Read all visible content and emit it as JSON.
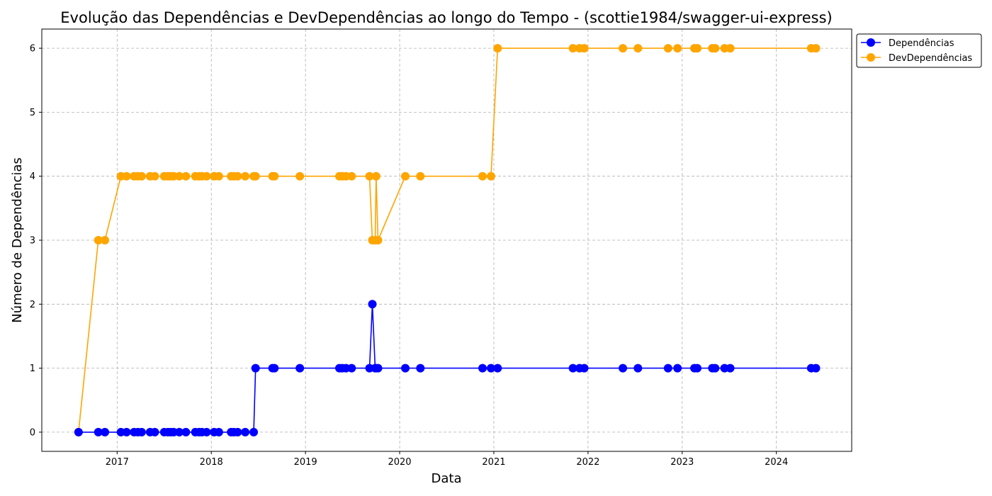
{
  "chart_data": {
    "type": "line",
    "title": "Evolução das Dependências e DevDependências ao longo do Tempo - (scottie1984/swagger-ui-express)",
    "xlabel": "Data",
    "ylabel": "Número de Dependências",
    "xlim": [
      2016.2,
      2024.8
    ],
    "ylim": [
      -0.3,
      6.3
    ],
    "x_ticks": [
      2017,
      2018,
      2019,
      2020,
      2021,
      2022,
      2023,
      2024
    ],
    "x_tick_labels": [
      "2017",
      "2018",
      "2019",
      "2020",
      "2021",
      "2022",
      "2023",
      "2024"
    ],
    "y_ticks": [
      0,
      1,
      2,
      3,
      4,
      5,
      6
    ],
    "y_tick_labels": [
      "0",
      "1",
      "2",
      "3",
      "4",
      "5",
      "6"
    ],
    "grid": true,
    "legend_position": "outside-top-right",
    "x": [
      2016.59,
      2016.8,
      2016.87,
      2017.04,
      2017.1,
      2017.18,
      2017.22,
      2017.26,
      2017.35,
      2017.4,
      2017.5,
      2017.54,
      2017.57,
      2017.6,
      2017.66,
      2017.73,
      2017.83,
      2017.87,
      2017.9,
      2017.95,
      2018.03,
      2018.08,
      2018.21,
      2018.24,
      2018.28,
      2018.36,
      2018.45,
      2018.47,
      2018.65,
      2018.67,
      2018.94,
      2019.36,
      2019.39,
      2019.43,
      2019.49,
      2019.68,
      2019.71,
      2019.74,
      2019.75,
      2019.77,
      2020.06,
      2020.22,
      2020.88,
      2020.97,
      2021.04,
      2021.84,
      2021.91,
      2021.96,
      2022.37,
      2022.53,
      2022.85,
      2022.95,
      2023.13,
      2023.16,
      2023.32,
      2023.35,
      2023.45,
      2023.51,
      2024.37,
      2024.42
    ],
    "series": [
      {
        "name": "Dependências",
        "color": "#0000ff",
        "values": [
          0,
          0,
          0,
          0,
          0,
          0,
          0,
          0,
          0,
          0,
          0,
          0,
          0,
          0,
          0,
          0,
          0,
          0,
          0,
          0,
          0,
          0,
          0,
          0,
          0,
          0,
          0,
          1,
          1,
          1,
          1,
          1,
          1,
          1,
          1,
          1,
          2,
          1,
          1,
          1,
          1,
          1,
          1,
          1,
          1,
          1,
          1,
          1,
          1,
          1,
          1,
          1,
          1,
          1,
          1,
          1,
          1,
          1,
          1,
          1
        ]
      },
      {
        "name": "DevDependências",
        "color": "#ffa500",
        "values": [
          0,
          3,
          3,
          4,
          4,
          4,
          4,
          4,
          4,
          4,
          4,
          4,
          4,
          4,
          4,
          4,
          4,
          4,
          4,
          4,
          4,
          4,
          4,
          4,
          4,
          4,
          4,
          4,
          4,
          4,
          4,
          4,
          4,
          4,
          4,
          4,
          3,
          3,
          4,
          3,
          4,
          4,
          4,
          4,
          6,
          6,
          6,
          6,
          6,
          6,
          6,
          6,
          6,
          6,
          6,
          6,
          6,
          6,
          6,
          6
        ]
      }
    ]
  }
}
